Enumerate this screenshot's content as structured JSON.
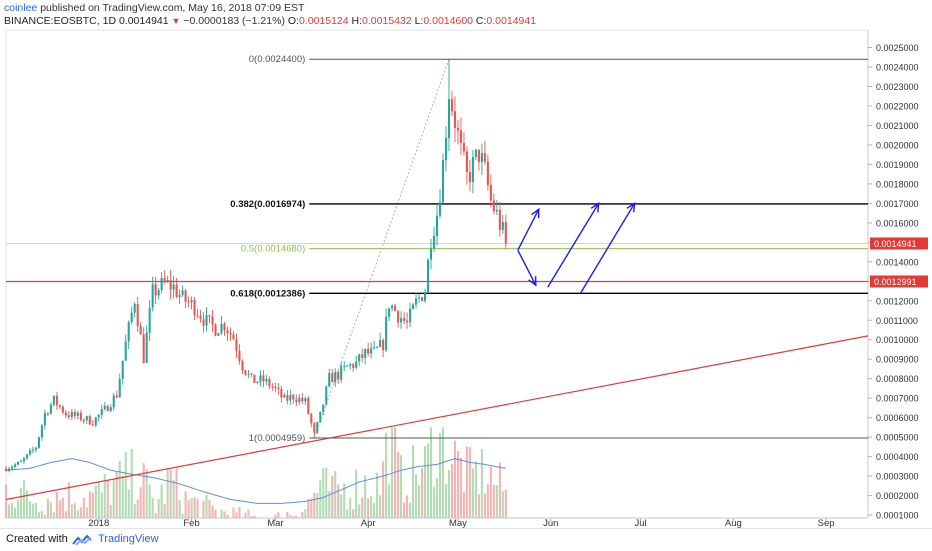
{
  "header": {
    "author": "coinlee",
    "published": "published on TradingView.com, May 16, 2018 07:09 EST"
  },
  "symbol_bar": {
    "symbol": "BINANCE:EOSBTC, 1D",
    "last": "0.0014941",
    "change": "−0.0000183 (−1.21%)",
    "o_label": "O:",
    "o": "0.0015124",
    "h_label": "H:",
    "h": "0.0015432",
    "l_label": "L:",
    "l": "0.0014600",
    "c_label": "C:",
    "c": "0.0014941"
  },
  "footer": {
    "created_with": "Created with",
    "brand": "TradingView"
  },
  "colors": {
    "up": "#26a69a",
    "down": "#ef5350",
    "fib_black": "#000000",
    "fib_green": "#8bc34a",
    "support_red": "#e53935",
    "arrow_blue": "#1a1aff",
    "volume_ma": "#5b8def",
    "price_badge": "#e53935"
  },
  "chart_data": {
    "type": "candlestick",
    "y_ticks": [
      "0.0025000",
      "0.0024000",
      "0.0023000",
      "0.0022000",
      "0.0021000",
      "0.0020000",
      "0.0019000",
      "0.0018000",
      "0.0017000",
      "0.0016000",
      "0.0015000",
      "0.0014000",
      "0.0013000",
      "0.0012000",
      "0.0011000",
      "0.0010000",
      "0.0009000",
      "0.0008000",
      "0.0007000",
      "0.0006000",
      "0.0005000",
      "0.0004000",
      "0.0003000",
      "0.0002000",
      "0.0001000"
    ],
    "ylim": [
      8.5e-05,
      0.00259
    ],
    "x_labels": [
      {
        "label": "2018",
        "day": 31
      },
      {
        "label": "Feb",
        "day": 62
      },
      {
        "label": "Mar",
        "day": 90
      },
      {
        "label": "Apr",
        "day": 121
      },
      {
        "label": "May",
        "day": 151
      },
      {
        "label": "Jun",
        "day": 182
      },
      {
        "label": "Jul",
        "day": 212
      },
      {
        "label": "Aug",
        "day": 243
      },
      {
        "label": "Sep",
        "day": 274
      }
    ],
    "x_range_days": [
      0,
      288
    ],
    "price_path_anchors": [
      [
        0,
        0.00034
      ],
      [
        5,
        0.00037
      ],
      [
        10,
        0.00045
      ],
      [
        13,
        0.00062
      ],
      [
        16,
        0.00069
      ],
      [
        20,
        0.00062
      ],
      [
        25,
        0.0006
      ],
      [
        29,
        0.00058
      ],
      [
        33,
        0.00064
      ],
      [
        37,
        0.00072
      ],
      [
        40,
        0.00098
      ],
      [
        43,
        0.00121
      ],
      [
        46,
        0.00091
      ],
      [
        49,
        0.00124
      ],
      [
        53,
        0.00129
      ],
      [
        56,
        0.00127
      ],
      [
        59,
        0.00121
      ],
      [
        63,
        0.00117
      ],
      [
        67,
        0.00109
      ],
      [
        70,
        0.00106
      ],
      [
        73,
        0.00108
      ],
      [
        76,
        0.00101
      ],
      [
        79,
        0.00087
      ],
      [
        82,
        0.00079
      ],
      [
        86,
        0.00079
      ],
      [
        89,
        0.00076
      ],
      [
        93,
        0.00069
      ],
      [
        96,
        0.00071
      ],
      [
        100,
        0.00068
      ],
      [
        103,
        0.00051
      ],
      [
        105,
        0.00061
      ],
      [
        108,
        0.0008
      ],
      [
        111,
        0.00082
      ],
      [
        114,
        0.00086
      ],
      [
        117,
        0.00088
      ],
      [
        120,
        0.00093
      ],
      [
        123,
        0.00093
      ],
      [
        126,
        0.00098
      ],
      [
        128,
        0.00119
      ],
      [
        131,
        0.00113
      ],
      [
        134,
        0.00108
      ],
      [
        137,
        0.00119
      ],
      [
        140,
        0.00126
      ],
      [
        142,
        0.00153
      ],
      [
        144,
        0.00165
      ],
      [
        146,
        0.0019
      ],
      [
        148,
        0.00228
      ],
      [
        150,
        0.00213
      ],
      [
        152,
        0.00196
      ],
      [
        154,
        0.00183
      ],
      [
        156,
        0.00189
      ],
      [
        158,
        0.00196
      ],
      [
        160,
        0.00186
      ],
      [
        162,
        0.00171
      ],
      [
        164,
        0.00164
      ],
      [
        166,
        0.00155
      ],
      [
        167,
        0.00149
      ]
    ],
    "volume_anchors": [
      [
        0,
        0.00024
      ],
      [
        10,
        0.00018
      ],
      [
        20,
        0.0002
      ],
      [
        30,
        0.0002
      ],
      [
        40,
        0.00029
      ],
      [
        45,
        0.0003
      ],
      [
        50,
        0.00015
      ],
      [
        55,
        0.00028
      ],
      [
        60,
        0.00018
      ],
      [
        70,
        0.00012
      ],
      [
        80,
        9e-05
      ],
      [
        90,
        8e-05
      ],
      [
        100,
        0.00014
      ],
      [
        105,
        0.00025
      ],
      [
        110,
        0.00022
      ],
      [
        120,
        0.00026
      ],
      [
        125,
        0.00025
      ],
      [
        128,
        0.0005
      ],
      [
        132,
        0.00028
      ],
      [
        140,
        0.00034
      ],
      [
        143,
        0.00048
      ],
      [
        146,
        0.00046
      ],
      [
        150,
        0.00038
      ],
      [
        155,
        0.0003
      ],
      [
        160,
        0.00032
      ],
      [
        167,
        0.00022
      ]
    ],
    "volume_ma_anchors": [
      [
        0,
        0.00033
      ],
      [
        8,
        0.00034
      ],
      [
        15,
        0.00037
      ],
      [
        22,
        0.00039
      ],
      [
        28,
        0.00037
      ],
      [
        35,
        0.00033
      ],
      [
        42,
        0.00031
      ],
      [
        50,
        0.00029
      ],
      [
        58,
        0.00026
      ],
      [
        66,
        0.00022
      ],
      [
        75,
        0.00018
      ],
      [
        84,
        0.00016
      ],
      [
        92,
        0.00016
      ],
      [
        100,
        0.00017
      ],
      [
        106,
        0.00019
      ],
      [
        112,
        0.00023
      ],
      [
        118,
        0.00027
      ],
      [
        126,
        0.0003
      ],
      [
        132,
        0.00033
      ],
      [
        138,
        0.00035
      ],
      [
        144,
        0.00036
      ],
      [
        150,
        0.00039
      ],
      [
        155,
        0.00037
      ],
      [
        160,
        0.00036
      ],
      [
        167,
        0.00034
      ]
    ],
    "fibonacci": {
      "top": {
        "label": "0(0.0024400)",
        "value": 0.00244
      },
      "levels": [
        {
          "label": "0.382(0.0016974)",
          "value": 0.0016974,
          "style": "black"
        },
        {
          "label": "0.5(0.0014680)",
          "value": 0.001468,
          "style": "green"
        },
        {
          "label": "0.618(0.0012386)",
          "value": 0.0012386,
          "style": "black"
        }
      ],
      "bottom": {
        "label": "1(0.0004959)",
        "value": 0.0004959
      },
      "start_day": 103,
      "end_day": 148
    },
    "horizontal_lines": [
      {
        "value": 0.0012991,
        "label": "0.0012991",
        "color": "red"
      },
      {
        "value": 0.0014941,
        "label": "0.0014941",
        "color": "pinkish"
      }
    ],
    "trendline": {
      "from": [
        0,
        0.00018
      ],
      "to": [
        288,
        0.00102
      ]
    },
    "arrows": [
      {
        "from": [
          171,
          0.00146
        ],
        "to": [
          178,
          0.00167
        ]
      },
      {
        "from": [
          171,
          0.00146
        ],
        "to": [
          177,
          0.00128
        ]
      },
      {
        "from": [
          181,
          0.00127
        ],
        "to": [
          198,
          0.0017
        ]
      },
      {
        "from": [
          192,
          0.00124
        ],
        "to": [
          210,
          0.0017
        ]
      }
    ],
    "last_price": 0.0014941
  }
}
